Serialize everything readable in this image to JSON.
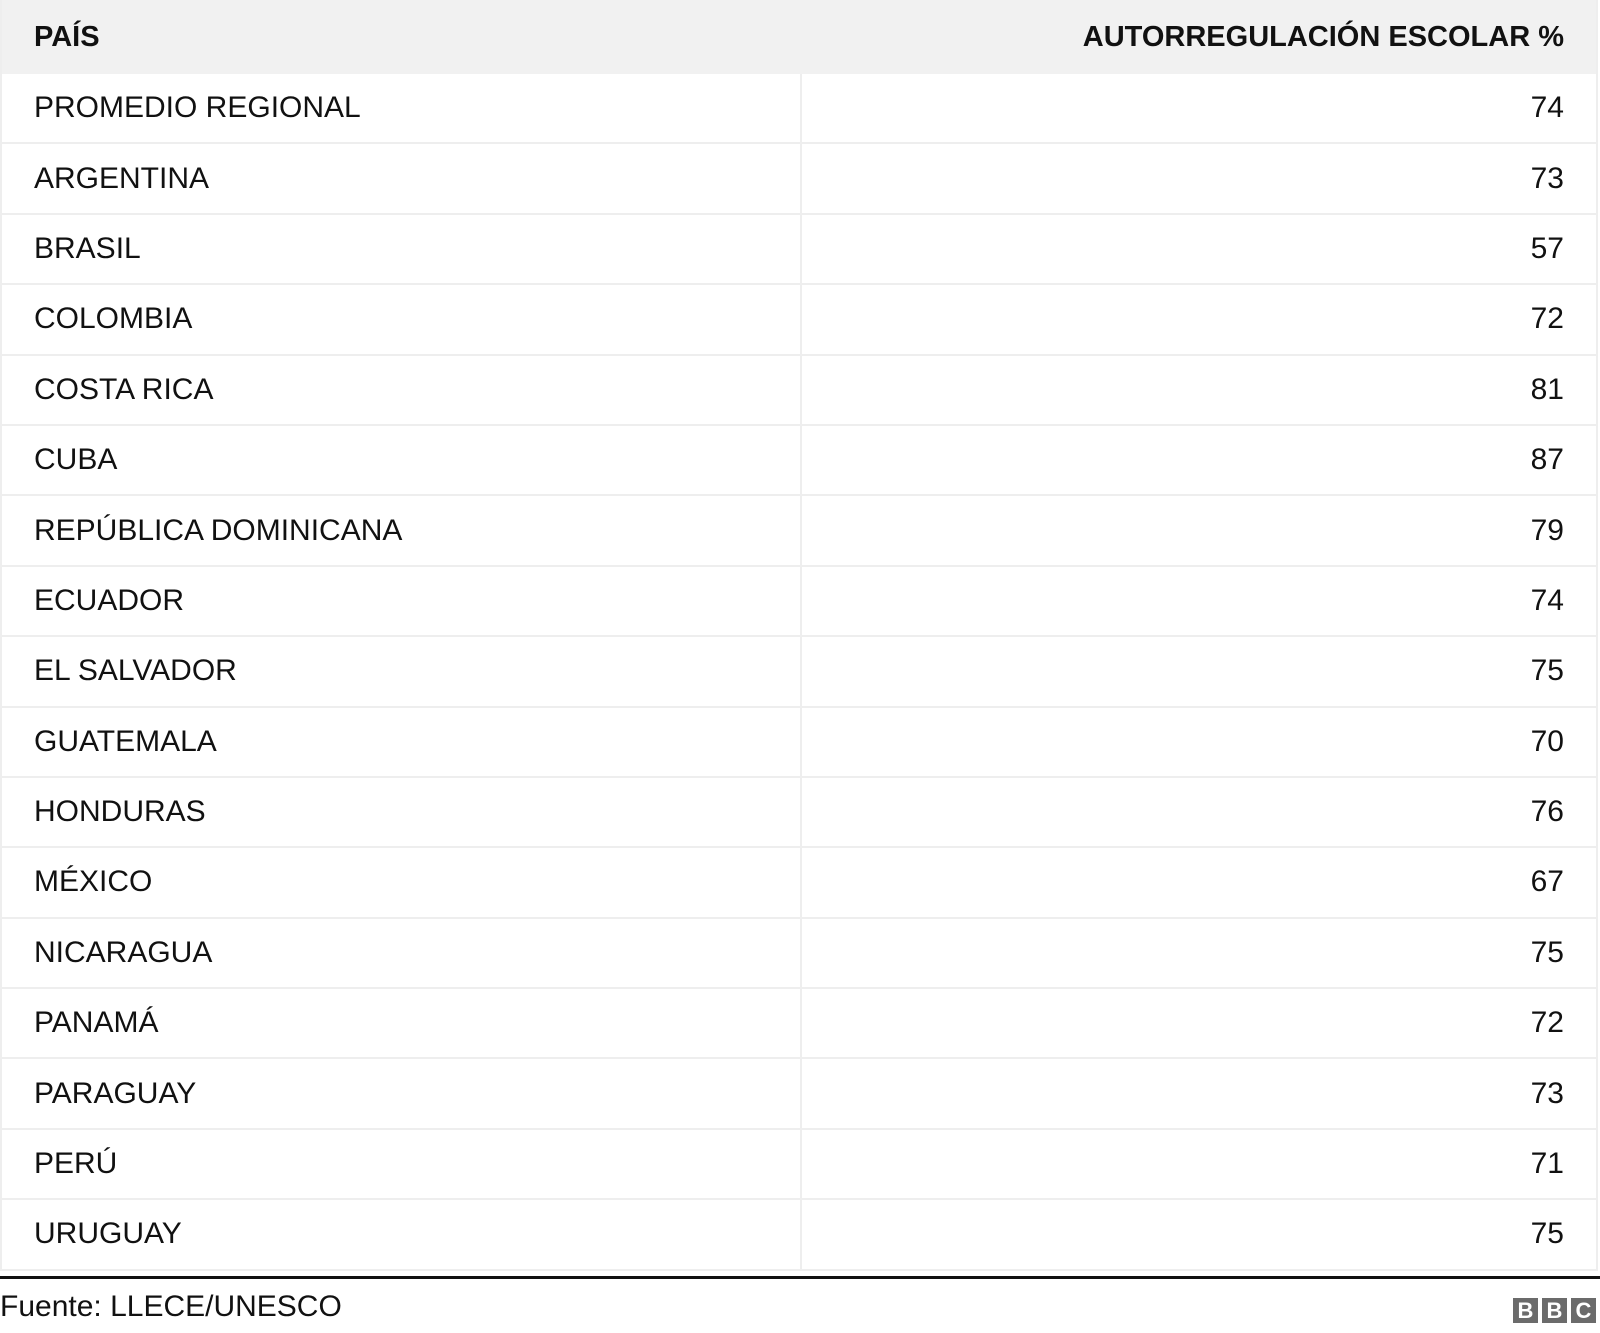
{
  "table": {
    "headers": [
      "PAÍS",
      "AUTORREGULACIÓN ESCOLAR %"
    ],
    "rows": [
      [
        "PROMEDIO REGIONAL",
        "74"
      ],
      [
        "ARGENTINA",
        "73"
      ],
      [
        "BRASIL",
        "57"
      ],
      [
        "COLOMBIA",
        "72"
      ],
      [
        "COSTA RICA",
        "81"
      ],
      [
        "CUBA",
        "87"
      ],
      [
        "REPÚBLICA DOMINICANA",
        "79"
      ],
      [
        "ECUADOR",
        "74"
      ],
      [
        "EL SALVADOR",
        "75"
      ],
      [
        "GUATEMALA",
        "70"
      ],
      [
        "HONDURAS",
        "76"
      ],
      [
        "MÉXICO",
        "67"
      ],
      [
        "NICARAGUA",
        "75"
      ],
      [
        "PANAMÁ",
        "72"
      ],
      [
        "PARAGUAY",
        "73"
      ],
      [
        "PERÚ",
        "71"
      ],
      [
        "URUGUAY",
        "75"
      ]
    ]
  },
  "footer": {
    "source": "Fuente: LLECE/UNESCO",
    "logo_letters": [
      "B",
      "B",
      "C"
    ]
  }
}
